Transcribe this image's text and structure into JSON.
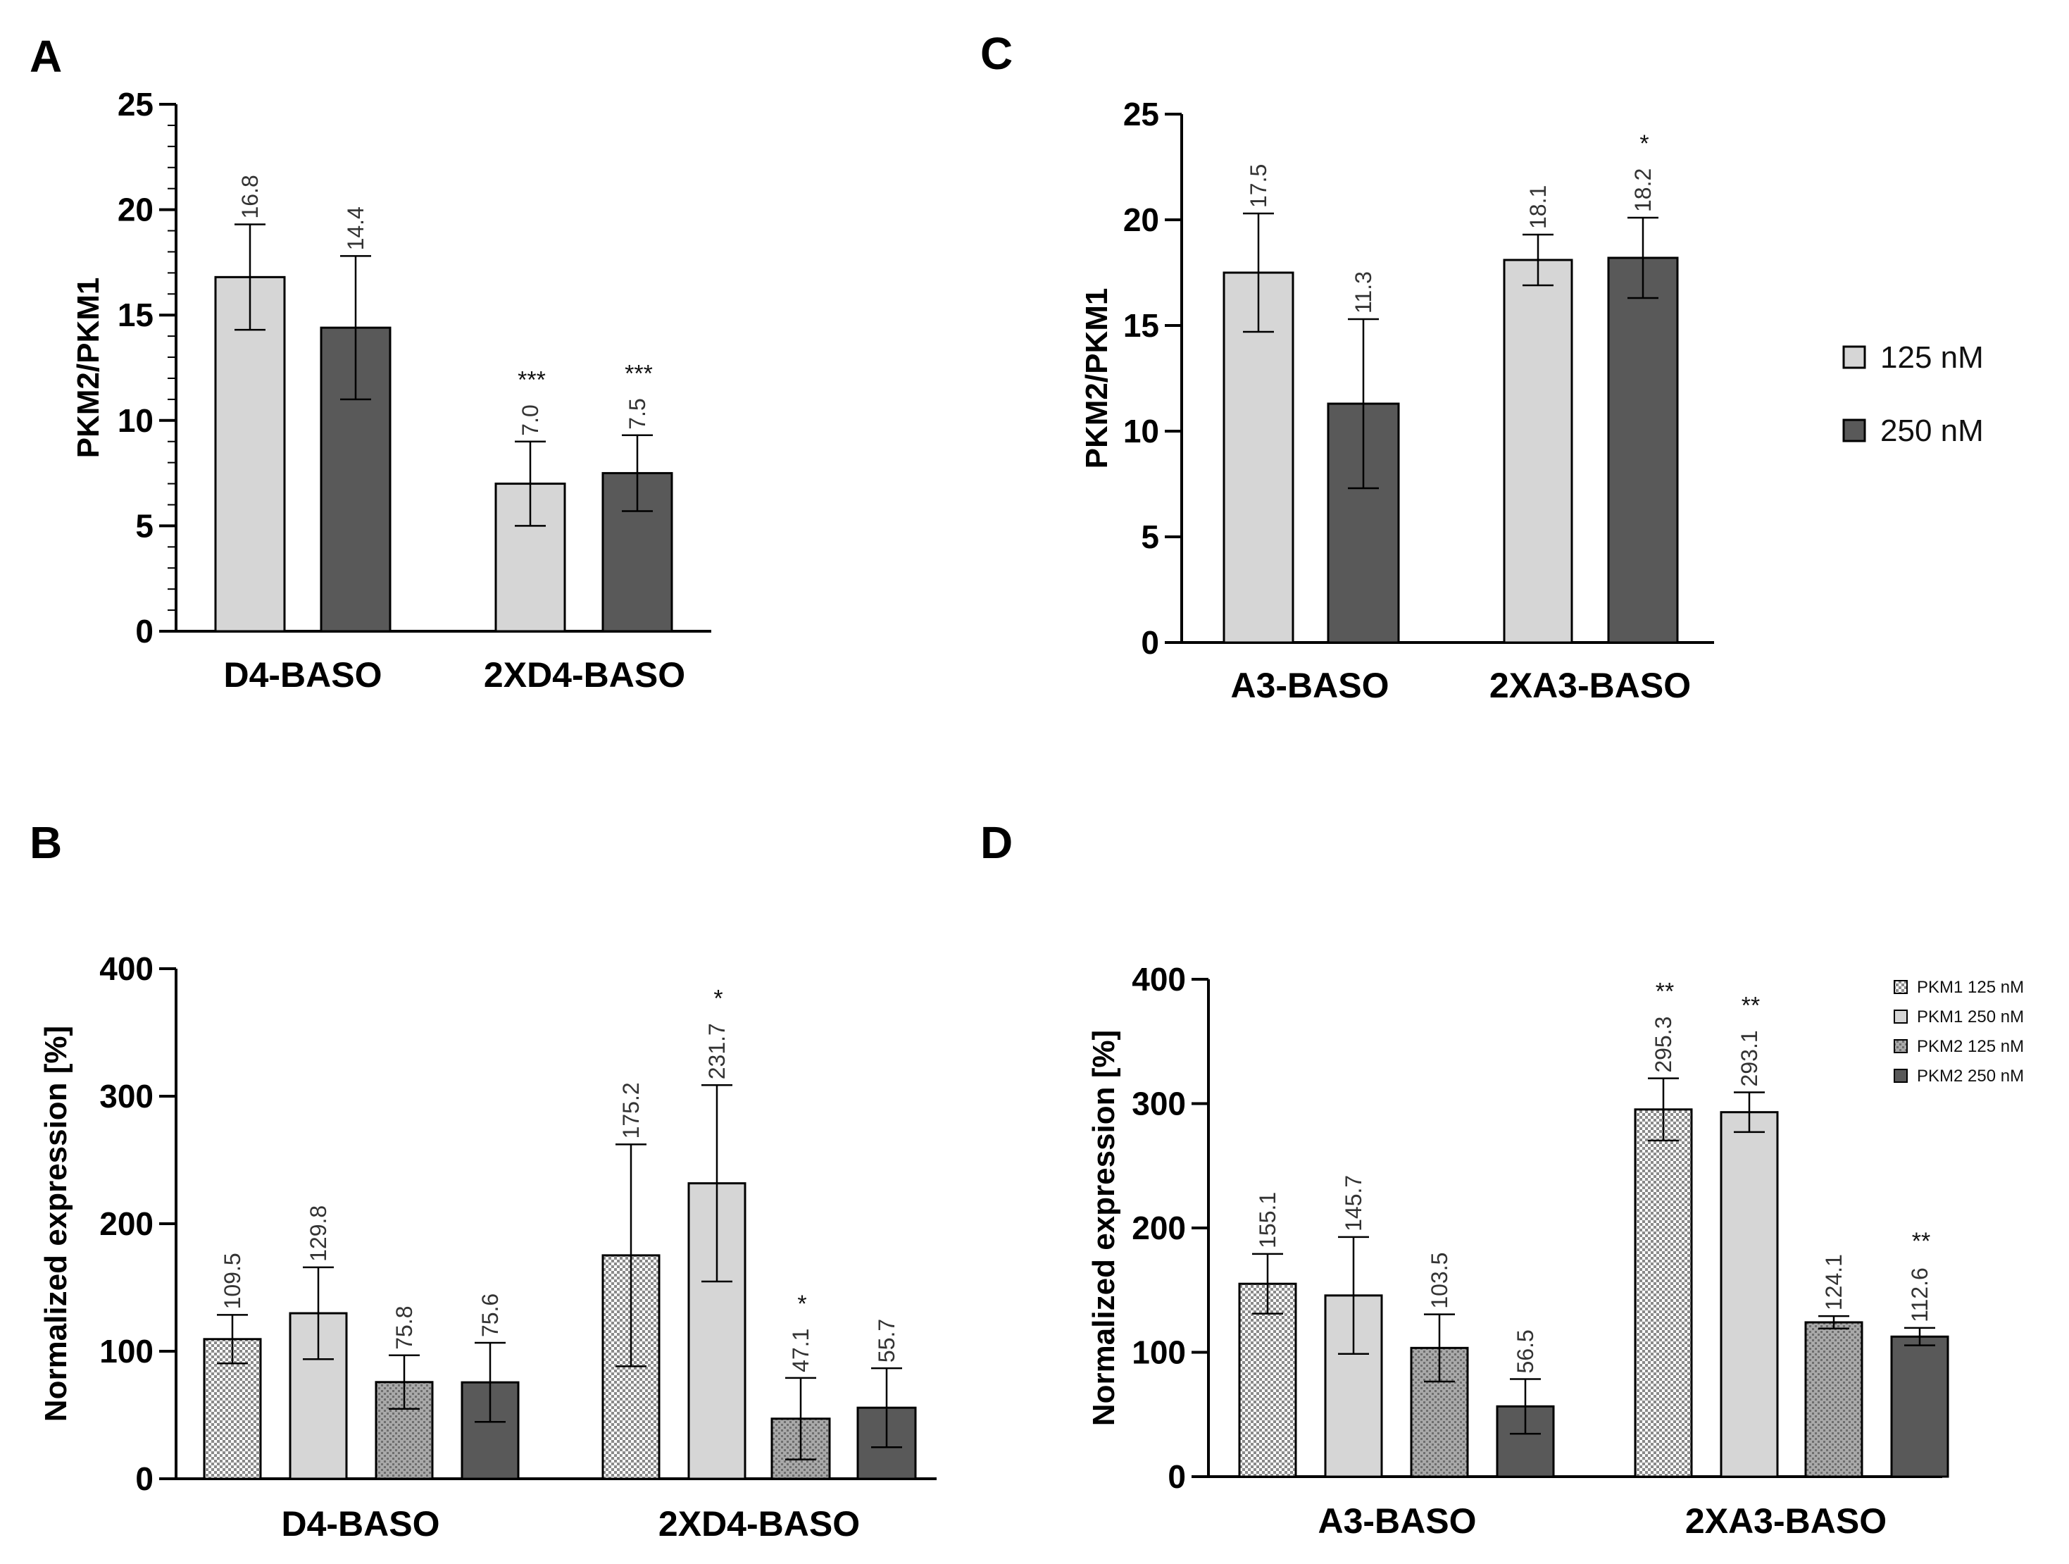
{
  "colors": {
    "light": "#d6d6d6",
    "dark": "#595959",
    "mid": "#9e9e9e",
    "axis": "#000000"
  },
  "legend_top": [
    {
      "label": "125 nM",
      "style": "light"
    },
    {
      "label": "250 nM",
      "style": "dark"
    }
  ],
  "legend_bottom": [
    {
      "label": "PKM1 125 nM",
      "style": "check"
    },
    {
      "label": "PKM1 250 nM",
      "style": "light"
    },
    {
      "label": "PKM2 125 nM",
      "style": "dots"
    },
    {
      "label": "PKM2 250 nM",
      "style": "dark"
    }
  ],
  "chart_data": [
    {
      "panel": "A",
      "type": "bar",
      "ylabel": "PKM2/PKM1",
      "ylim": [
        0,
        25
      ],
      "yticks": [
        "0",
        "5",
        "10",
        "15",
        "20",
        "25"
      ],
      "ytick_values": [
        0,
        5,
        10,
        15,
        20,
        25
      ],
      "minor_ticks": 4,
      "categories": [
        "D4-BASO",
        "2XD4-BASO"
      ],
      "series": [
        {
          "name": "125 nM",
          "style": "light",
          "values": [
            16.8,
            7.0
          ],
          "errors": [
            2.5,
            2.0
          ],
          "value_labels": [
            "16.8",
            "7.0"
          ],
          "sig": [
            "",
            "***"
          ]
        },
        {
          "name": "250 nM",
          "style": "dark",
          "values": [
            14.4,
            7.5
          ],
          "errors": [
            3.4,
            1.8
          ],
          "value_labels": [
            "14.4",
            "7.5"
          ],
          "sig": [
            "",
            "***"
          ]
        }
      ]
    },
    {
      "panel": "C",
      "type": "bar",
      "ylabel": "PKM2/PKM1",
      "ylim": [
        0,
        25
      ],
      "yticks": [
        "0",
        "5",
        "10",
        "15",
        "20",
        "25"
      ],
      "ytick_values": [
        0,
        5,
        10,
        15,
        20,
        25
      ],
      "minor_ticks": 0,
      "categories": [
        "A3-BASO",
        "2XA3-BASO"
      ],
      "series": [
        {
          "name": "125 nM",
          "style": "light",
          "values": [
            17.5,
            18.1
          ],
          "errors": [
            2.8,
            1.2
          ],
          "value_labels": [
            "17.5",
            "18.1"
          ],
          "sig": [
            "",
            ""
          ]
        },
        {
          "name": "250 nM",
          "style": "dark",
          "values": [
            11.3,
            18.2
          ],
          "errors": [
            4.0,
            1.9
          ],
          "value_labels": [
            "11.3",
            "18.2"
          ],
          "sig": [
            "",
            "*"
          ]
        }
      ]
    },
    {
      "panel": "B",
      "type": "bar",
      "ylabel": "Normalized expression [%]",
      "ylim": [
        0,
        400
      ],
      "yticks": [
        "0",
        "100",
        "200",
        "300",
        "400"
      ],
      "ytick_values": [
        0,
        100,
        200,
        300,
        400
      ],
      "minor_ticks": 0,
      "categories": [
        "D4-BASO",
        "2XD4-BASO"
      ],
      "series": [
        {
          "name": "PKM1 125 nM",
          "style": "check",
          "values": [
            109.5,
            175.2
          ],
          "errors": [
            19,
            87
          ],
          "value_labels": [
            "109.5",
            "175.2"
          ],
          "sig": [
            "",
            ""
          ]
        },
        {
          "name": "PKM1 250 nM",
          "style": "light",
          "values": [
            129.8,
            231.7
          ],
          "errors": [
            36,
            77
          ],
          "value_labels": [
            "129.8",
            "231.7"
          ],
          "sig": [
            "",
            "*"
          ]
        },
        {
          "name": "PKM2 125 nM",
          "style": "dots",
          "values": [
            75.8,
            47.1
          ],
          "errors": [
            21,
            32
          ],
          "value_labels": [
            "75.8",
            "47.1"
          ],
          "sig": [
            "",
            "*"
          ]
        },
        {
          "name": "PKM2 250 nM",
          "style": "dark",
          "values": [
            75.6,
            55.7
          ],
          "errors": [
            31,
            31
          ],
          "value_labels": [
            "75.6",
            "55.7"
          ],
          "sig": [
            "",
            ""
          ]
        }
      ]
    },
    {
      "panel": "D",
      "type": "bar",
      "ylabel": "Normalized expression [%]",
      "ylim": [
        0,
        400
      ],
      "yticks": [
        "0",
        "100",
        "200",
        "300",
        "400"
      ],
      "ytick_values": [
        0,
        100,
        200,
        300,
        400
      ],
      "minor_ticks": 0,
      "categories": [
        "A3-BASO",
        "2XA3-BASO"
      ],
      "series": [
        {
          "name": "PKM1 125 nM",
          "style": "check",
          "values": [
            155.1,
            295.3
          ],
          "errors": [
            24,
            25
          ],
          "value_labels": [
            "155.1",
            "295.3"
          ],
          "sig": [
            "",
            "**"
          ]
        },
        {
          "name": "PKM1 250 nM",
          "style": "light",
          "values": [
            145.7,
            293.1
          ],
          "errors": [
            47,
            16
          ],
          "value_labels": [
            "145.7",
            "293.1"
          ],
          "sig": [
            "",
            "**"
          ]
        },
        {
          "name": "PKM2 125 nM",
          "style": "dots",
          "values": [
            103.5,
            124.1
          ],
          "errors": [
            27,
            5
          ],
          "value_labels": [
            "103.5",
            "124.1"
          ],
          "sig": [
            "",
            ""
          ]
        },
        {
          "name": "PKM2 250 nM",
          "style": "dark",
          "values": [
            56.5,
            112.6
          ],
          "errors": [
            22,
            7
          ],
          "value_labels": [
            "56.5",
            "112.6"
          ],
          "sig": [
            "",
            "**"
          ]
        }
      ]
    }
  ]
}
